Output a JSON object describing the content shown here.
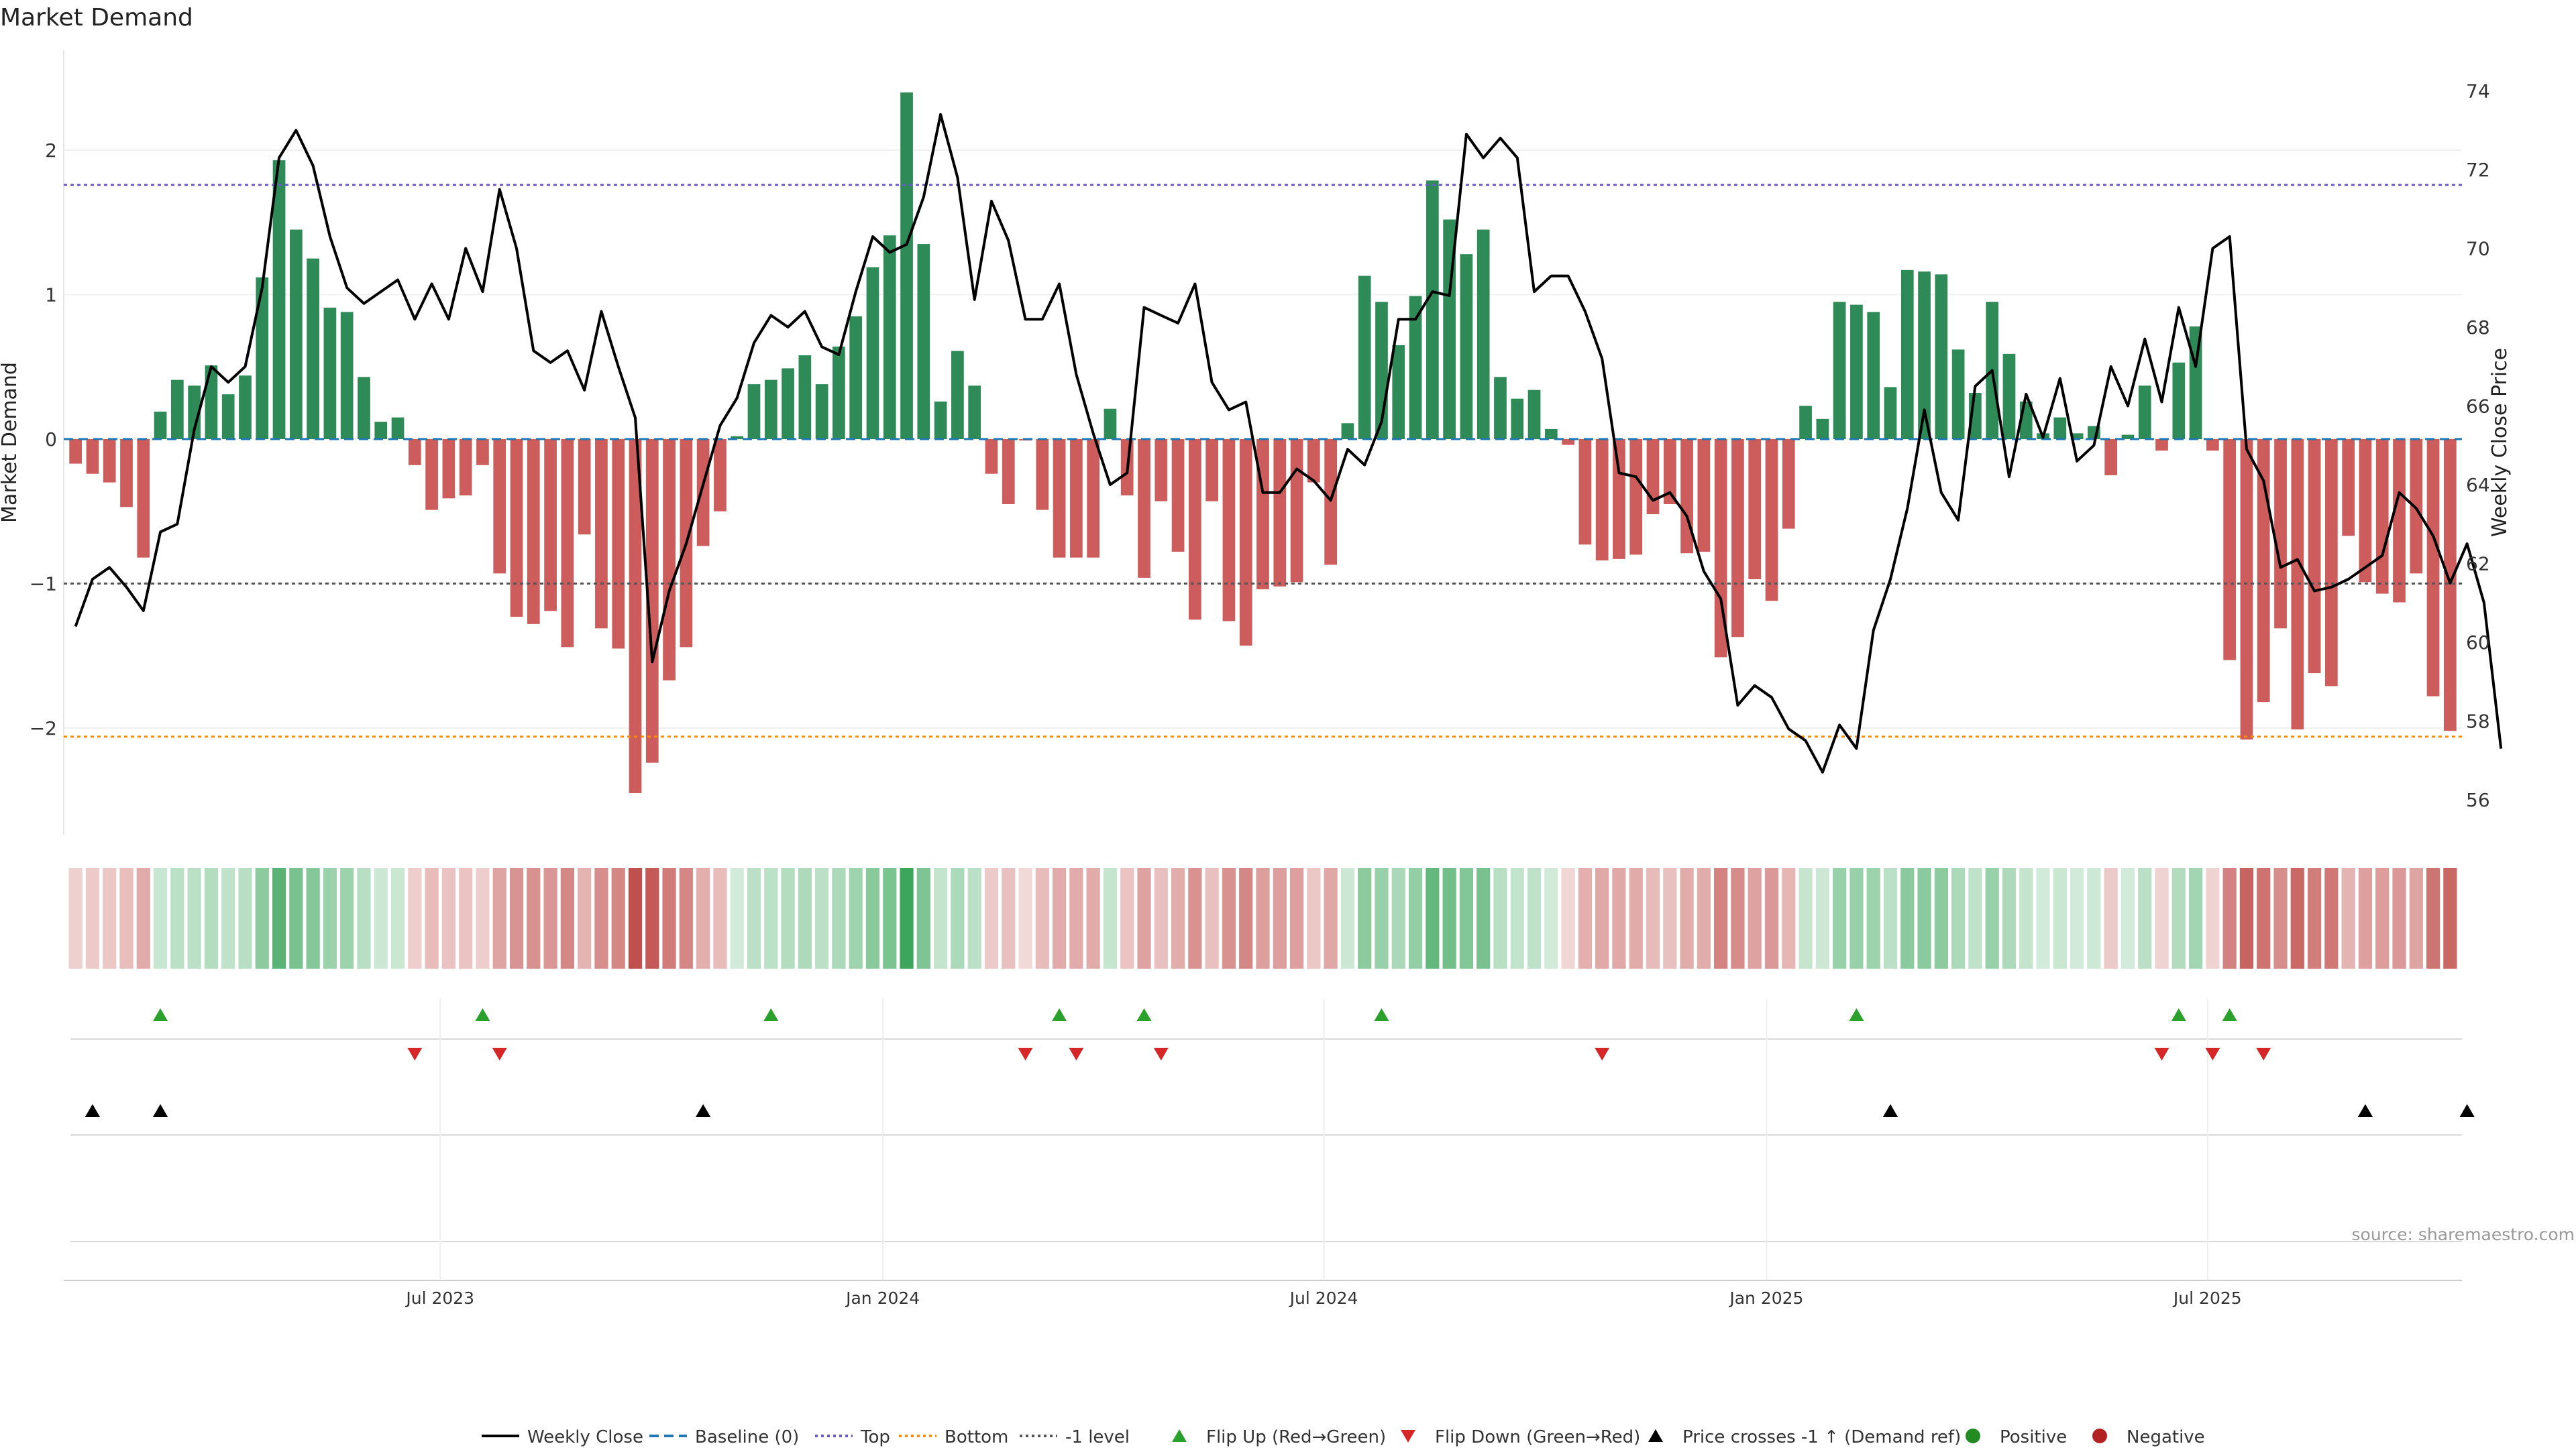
{
  "chart_data": {
    "type": "bar",
    "title": "Market Demand",
    "ylabel_left": "Market Demand",
    "ylabel_right": "Weekly Close Price",
    "ylim_left": [
      -2.7,
      2.7
    ],
    "ylim_right": [
      55,
      75
    ],
    "left_ticks": [
      {
        "v": 2,
        "label": "2"
      },
      {
        "v": 1,
        "label": "1"
      },
      {
        "v": 0,
        "label": "0"
      },
      {
        "v": -1,
        "label": "−1"
      },
      {
        "v": -2,
        "label": "−2"
      }
    ],
    "right_ticks": [
      56,
      58,
      60,
      62,
      64,
      66,
      68,
      70,
      72,
      74
    ],
    "x_ticks": [
      {
        "index": 21.5,
        "label": "Jul 2023"
      },
      {
        "index": 47.6,
        "label": "Jan 2024"
      },
      {
        "index": 73.6,
        "label": "Jul 2024"
      },
      {
        "index": 99.7,
        "label": "Jan 2025"
      },
      {
        "index": 125.7,
        "label": "Jul 2025"
      }
    ],
    "reference_lines": {
      "top": 1.76,
      "bottom": -2.06,
      "minus_one": -1.0,
      "baseline": 0
    },
    "demand": [
      -0.17,
      -0.24,
      -0.3,
      -0.47,
      -0.82,
      0.19,
      0.41,
      0.37,
      0.51,
      0.31,
      0.44,
      1.12,
      1.93,
      1.45,
      1.25,
      0.91,
      0.88,
      0.43,
      0.12,
      0.15,
      -0.18,
      -0.49,
      -0.41,
      -0.39,
      -0.18,
      -0.93,
      -1.23,
      -1.28,
      -1.19,
      -1.44,
      -0.66,
      -1.31,
      -1.45,
      -2.45,
      -2.24,
      -1.67,
      -1.44,
      -0.74,
      -0.5,
      0.02,
      0.38,
      0.41,
      0.49,
      0.58,
      0.38,
      0.64,
      0.85,
      1.19,
      1.41,
      2.4,
      1.35,
      0.26,
      0.61,
      0.37,
      -0.24,
      -0.45,
      -0.01,
      -0.49,
      -0.82,
      -0.82,
      -0.82,
      0.21,
      -0.39,
      -0.96,
      -0.43,
      -0.78,
      -1.25,
      -0.43,
      -1.26,
      -1.43,
      -1.04,
      -1.02,
      -0.99,
      -0.3,
      -0.87,
      0.11,
      1.13,
      0.95,
      0.65,
      0.99,
      1.79,
      1.52,
      1.28,
      1.45,
      0.43,
      0.28,
      0.34,
      0.07,
      -0.04,
      -0.73,
      -0.84,
      -0.83,
      -0.8,
      -0.52,
      -0.45,
      -0.79,
      -0.78,
      -1.51,
      -1.37,
      -0.97,
      -1.12,
      -0.62,
      0.23,
      0.14,
      0.95,
      0.93,
      0.88,
      0.36,
      1.17,
      1.16,
      1.14,
      0.62,
      0.32,
      0.95,
      0.59,
      0.26,
      0.04,
      0.15,
      0.04,
      0.09,
      -0.25,
      0.03,
      0.37,
      -0.08,
      0.53,
      0.78,
      -0.08,
      -1.53,
      -2.08,
      -1.82,
      -1.31,
      -2.01,
      -1.62,
      -1.71,
      -0.67,
      -0.99,
      -1.07,
      -1.13,
      -0.93,
      -1.78,
      -2.02
    ],
    "weekly_close": [
      60.4,
      61.6,
      61.9,
      61.4,
      60.8,
      62.8,
      63.0,
      65.4,
      67.0,
      66.6,
      67.0,
      69.0,
      72.3,
      73.0,
      72.1,
      70.3,
      69.0,
      68.6,
      68.9,
      69.2,
      68.2,
      69.1,
      68.2,
      70.0,
      68.9,
      71.5,
      70.0,
      67.4,
      67.1,
      67.4,
      66.4,
      68.4,
      67.0,
      65.7,
      59.5,
      61.3,
      62.5,
      64.0,
      65.5,
      66.2,
      67.6,
      68.3,
      68.0,
      68.4,
      67.5,
      67.3,
      68.9,
      70.3,
      69.9,
      70.1,
      71.3,
      73.4,
      71.8,
      68.7,
      71.2,
      70.2,
      68.2,
      68.2,
      69.1,
      66.8,
      65.3,
      64.0,
      64.3,
      68.5,
      68.3,
      68.1,
      69.1,
      66.6,
      65.9,
      66.1,
      63.8,
      63.8,
      64.4,
      64.1,
      63.6,
      64.9,
      64.5,
      65.6,
      68.2,
      68.2,
      68.9,
      68.8,
      72.9,
      72.3,
      72.8,
      72.3,
      68.9,
      69.3,
      69.3,
      68.4,
      67.2,
      64.3,
      64.2,
      63.6,
      63.8,
      63.2,
      61.8,
      61.1,
      58.4,
      58.9,
      58.6,
      57.8,
      57.5,
      56.7,
      57.9,
      57.3,
      60.3,
      61.6,
      63.4,
      65.9,
      63.8,
      63.1,
      66.5,
      66.9,
      64.2,
      66.3,
      65.2,
      66.7,
      64.6,
      65.0,
      67.0,
      66.0,
      67.7,
      66.1,
      68.5,
      67.0,
      70.0,
      70.3,
      64.9,
      64.1,
      61.9,
      62.1,
      61.3,
      61.4,
      61.6,
      61.9,
      62.2,
      63.8,
      63.4,
      62.7,
      61.5,
      62.5,
      61.0,
      57.3
    ],
    "flip_up": [
      5,
      24,
      41,
      58,
      63,
      77,
      105,
      124,
      127
    ],
    "flip_down": [
      20,
      25,
      56,
      59,
      64,
      90,
      123,
      126,
      129
    ],
    "price_crosses": [
      1,
      5,
      37,
      107,
      135,
      141
    ],
    "legend": [
      "Weekly Close",
      "Baseline (0)",
      "Top",
      "Bottom",
      "-1 level",
      "Flip Up (Red→Green)",
      "Flip Down (Green→Red)",
      "Price crosses -1 ↑ (Demand ref)",
      "Positive",
      "Negative"
    ],
    "source": "source: sharemaestro.com"
  },
  "colors": {
    "positive": "#2e8b57",
    "negative": "#cd5c5c",
    "price": "#000000",
    "baseline": "#1f77b4",
    "top": "#6a5acd",
    "bottom": "#ff8c00",
    "minus_one": "#555555",
    "flip_up": "#2ca02c",
    "flip_down": "#d62728",
    "cross": "#000000"
  }
}
